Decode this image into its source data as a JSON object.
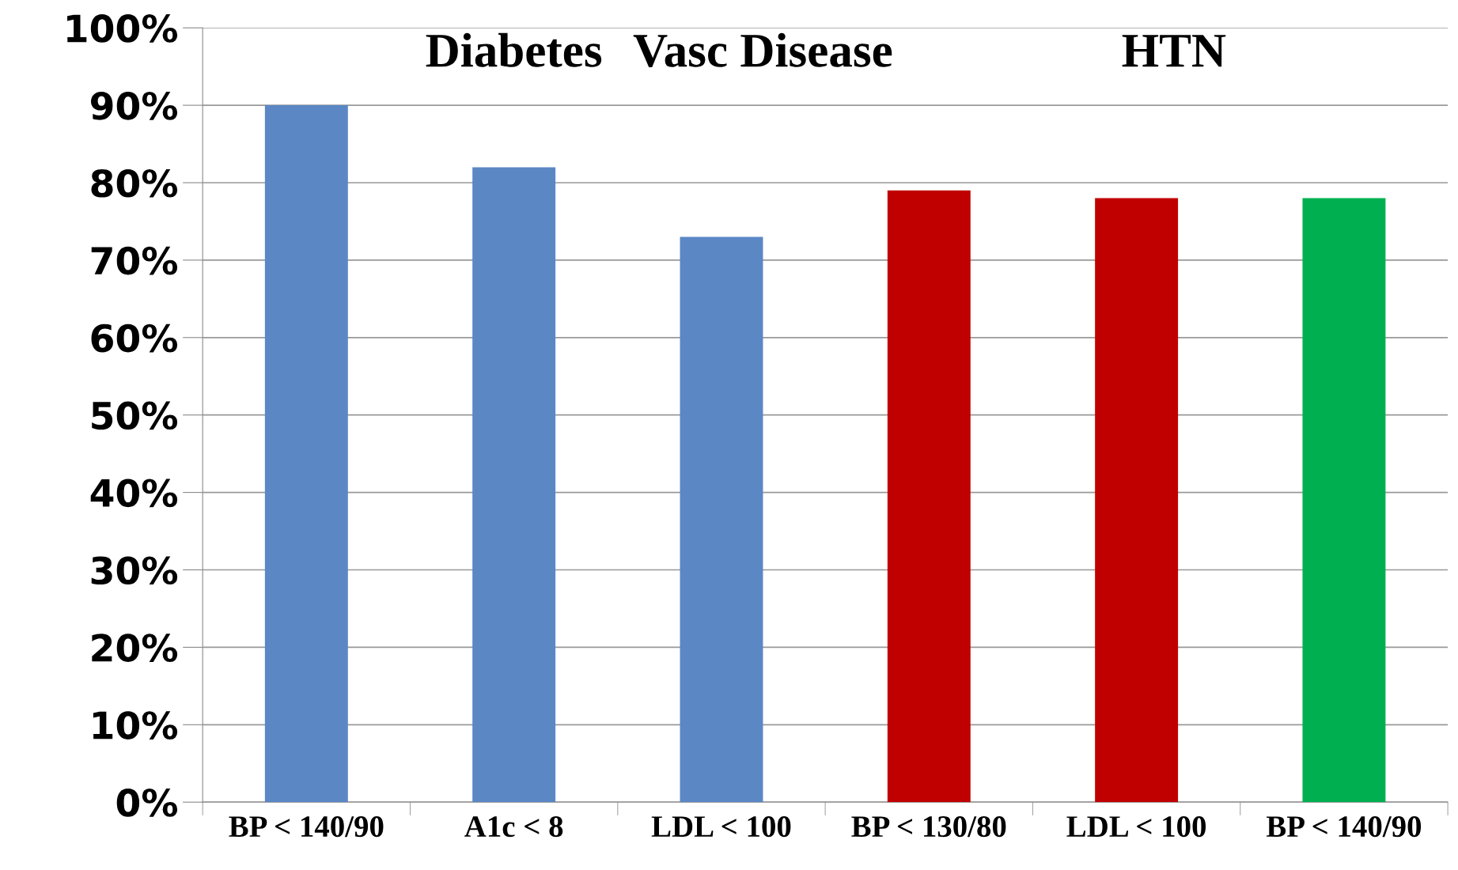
{
  "chart_data": {
    "type": "bar",
    "categories": [
      "BP < 140/90",
      "A1c < 8",
      "LDL < 100",
      "BP < 130/80",
      "LDL < 100",
      "BP < 140/90"
    ],
    "values": [
      90,
      82,
      73,
      79,
      78,
      78
    ],
    "colors": [
      "#5b87c5",
      "#5b87c5",
      "#5b87c5",
      "#c00000",
      "#c00000",
      "#00b050"
    ],
    "ylim": [
      0,
      100
    ],
    "yticks": [
      {
        "value": 0,
        "label": "0%"
      },
      {
        "value": 10,
        "label": "10%"
      },
      {
        "value": 20,
        "label": "20%"
      },
      {
        "value": 30,
        "label": "30%"
      },
      {
        "value": 40,
        "label": "40%"
      },
      {
        "value": 50,
        "label": "50%"
      },
      {
        "value": 60,
        "label": "60%"
      },
      {
        "value": 70,
        "label": "70%"
      },
      {
        "value": 80,
        "label": "80%"
      },
      {
        "value": 90,
        "label": "90%"
      },
      {
        "value": 100,
        "label": "100%"
      }
    ],
    "grid": "y",
    "annotations": [
      "Diabetes",
      "Vasc Disease",
      "HTN"
    ]
  }
}
